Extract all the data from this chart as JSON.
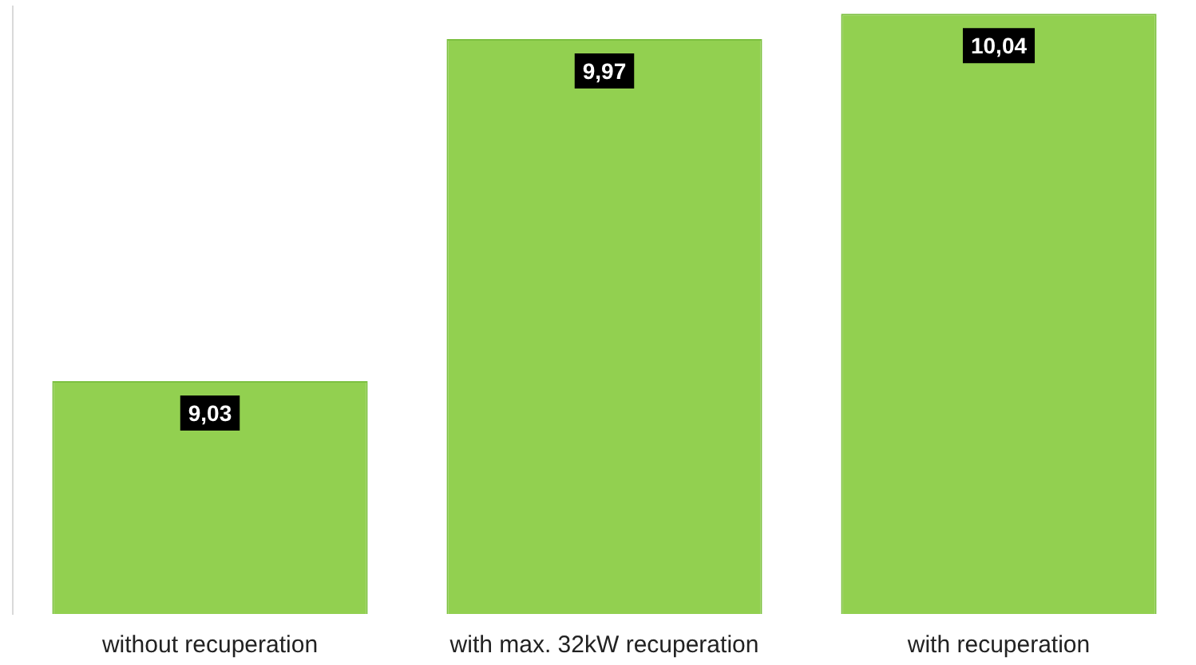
{
  "chart_data": {
    "type": "bar",
    "categories": [
      "without recuperation",
      "with max. 32kW recuperation",
      "with recuperation"
    ],
    "values": [
      9.03,
      9.97,
      10.04
    ],
    "value_labels": [
      "9,03",
      "9,97",
      "10,04"
    ],
    "color": "#92d050",
    "ylim": [
      8.39,
      10.06
    ],
    "grid": false,
    "legend": false,
    "tick_labels": "x"
  }
}
